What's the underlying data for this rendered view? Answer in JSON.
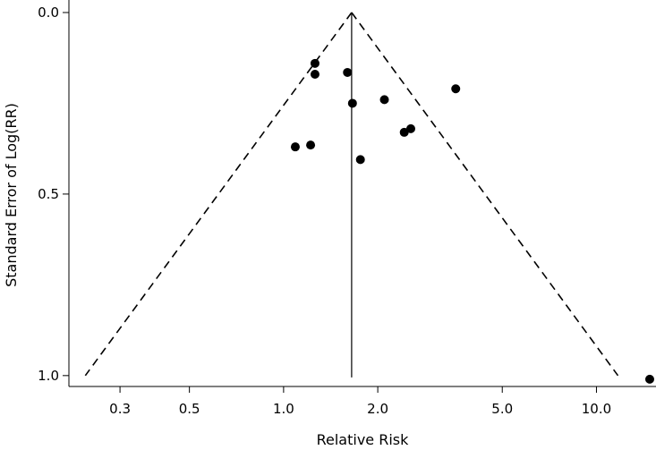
{
  "chart_data": {
    "type": "scatter",
    "title": "",
    "xlabel": "Relative Risk",
    "ylabel": "Standard Error of Log(RR)",
    "x_scale": "log",
    "y_reversed": true,
    "xlim": [
      0.22,
      15.5
    ],
    "ylim": [
      0.0,
      1.03
    ],
    "x_ticks": [
      {
        "value": 0.3,
        "label": "0.3"
      },
      {
        "value": 0.5,
        "label": "0.5"
      },
      {
        "value": 1.0,
        "label": "1.0"
      },
      {
        "value": 2.0,
        "label": "2.0"
      },
      {
        "value": 5.0,
        "label": "5.0"
      },
      {
        "value": 10.0,
        "label": "10.0"
      }
    ],
    "y_ticks": [
      {
        "value": 0.0,
        "label": "0.0"
      },
      {
        "value": 0.5,
        "label": "0.5"
      },
      {
        "value": 1.0,
        "label": "1.0"
      }
    ],
    "grid": false,
    "legend": "none",
    "pooled_estimate": 1.65,
    "funnel_limit_se": 1.0,
    "points": [
      {
        "x": 1.26,
        "y": 0.14
      },
      {
        "x": 1.26,
        "y": 0.17
      },
      {
        "x": 1.6,
        "y": 0.165
      },
      {
        "x": 3.55,
        "y": 0.21
      },
      {
        "x": 2.1,
        "y": 0.24
      },
      {
        "x": 1.66,
        "y": 0.25
      },
      {
        "x": 2.55,
        "y": 0.32
      },
      {
        "x": 2.43,
        "y": 0.33
      },
      {
        "x": 1.09,
        "y": 0.37
      },
      {
        "x": 1.22,
        "y": 0.365
      },
      {
        "x": 1.76,
        "y": 0.405
      },
      {
        "x": 14.8,
        "y": 1.01
      }
    ],
    "colors": {
      "points": "#000000",
      "lines": "#000000",
      "background": "#ffffff"
    }
  }
}
